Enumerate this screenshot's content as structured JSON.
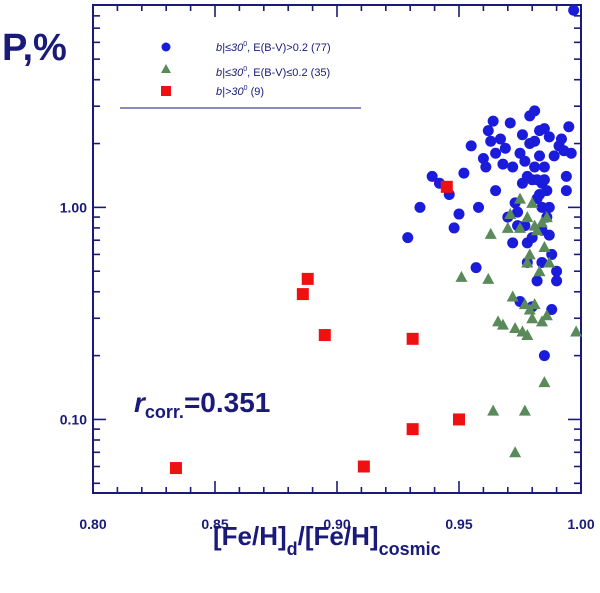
{
  "chart_data": {
    "type": "scatter",
    "title": "",
    "ylabel": "P,%",
    "xlabel_parts": {
      "a": "[Fe/H]",
      "a_sub": "d",
      "b": "/[Fe/H]",
      "b_sub": "cosmic"
    },
    "xlim": [
      0.8,
      1.0
    ],
    "ylim": [
      0.045,
      9.0
    ],
    "yscale": "log",
    "x_ticks": [
      "0.80",
      "0.85",
      "0.90",
      "0.95",
      "1.00"
    ],
    "y_ticks": [
      {
        "value": 0.1,
        "label": "0.10"
      },
      {
        "value": 1.0,
        "label": "1.00"
      }
    ],
    "annotation": {
      "r": "r",
      "sub": "corr.",
      "value": "=0.351"
    },
    "legend": [
      {
        "series": 0,
        "pre": "b|≤30",
        "sup": "0",
        "post": ", E(B-V)>0.2 (77)"
      },
      {
        "series": 1,
        "pre": "b|≤30",
        "sup": "0",
        "post": ", E(B-V)≤0.2 (35)"
      },
      {
        "series": 2,
        "pre": "b|>30",
        "sup": "0",
        "post": " (9)"
      }
    ],
    "series": [
      {
        "name": "|b|≤30°, E(B-V)>0.2 (77)",
        "marker": "circle",
        "color": "#1b1bdb",
        "points": [
          [
            0.997,
            8.5
          ],
          [
            0.929,
            0.72
          ],
          [
            0.934,
            1.0
          ],
          [
            0.939,
            1.4
          ],
          [
            0.942,
            1.3
          ],
          [
            0.946,
            1.15
          ],
          [
            0.948,
            0.8
          ],
          [
            0.95,
            0.93
          ],
          [
            0.952,
            1.45
          ],
          [
            0.955,
            1.95
          ],
          [
            0.957,
            0.52
          ],
          [
            0.958,
            1.0
          ],
          [
            0.96,
            1.7
          ],
          [
            0.961,
            1.55
          ],
          [
            0.962,
            2.3
          ],
          [
            0.963,
            2.05
          ],
          [
            0.964,
            2.55
          ],
          [
            0.965,
            1.8
          ],
          [
            0.965,
            1.2
          ],
          [
            0.967,
            2.1
          ],
          [
            0.968,
            1.6
          ],
          [
            0.969,
            1.9
          ],
          [
            0.97,
            0.9
          ],
          [
            0.971,
            2.5
          ],
          [
            0.972,
            0.68
          ],
          [
            0.972,
            1.55
          ],
          [
            0.973,
            1.05
          ],
          [
            0.974,
            0.95
          ],
          [
            0.974,
            0.82
          ],
          [
            0.975,
            1.8
          ],
          [
            0.975,
            0.36
          ],
          [
            0.976,
            2.2
          ],
          [
            0.976,
            1.3
          ],
          [
            0.977,
            1.65
          ],
          [
            0.977,
            0.82
          ],
          [
            0.978,
            1.4
          ],
          [
            0.978,
            0.68
          ],
          [
            0.978,
            0.55
          ],
          [
            0.979,
            2.7
          ],
          [
            0.979,
            2.0
          ],
          [
            0.98,
            1.35
          ],
          [
            0.98,
            0.72
          ],
          [
            0.98,
            0.34
          ],
          [
            0.981,
            2.85
          ],
          [
            0.981,
            2.05
          ],
          [
            0.981,
            1.55
          ],
          [
            0.982,
            1.35
          ],
          [
            0.982,
            1.1
          ],
          [
            0.982,
            0.45
          ],
          [
            0.983,
            2.3
          ],
          [
            0.983,
            1.75
          ],
          [
            0.983,
            1.15
          ],
          [
            0.984,
            1.3
          ],
          [
            0.984,
            1.0
          ],
          [
            0.984,
            0.78
          ],
          [
            0.984,
            0.55
          ],
          [
            0.985,
            2.35
          ],
          [
            0.985,
            1.55
          ],
          [
            0.985,
            1.35
          ],
          [
            0.985,
            0.2
          ],
          [
            0.986,
            1.2
          ],
          [
            0.986,
            0.9
          ],
          [
            0.987,
            2.15
          ],
          [
            0.987,
            1.0
          ],
          [
            0.987,
            0.74
          ],
          [
            0.988,
            0.6
          ],
          [
            0.988,
            0.33
          ],
          [
            0.989,
            1.75
          ],
          [
            0.99,
            0.5
          ],
          [
            0.99,
            0.45
          ],
          [
            0.991,
            1.95
          ],
          [
            0.992,
            2.1
          ],
          [
            0.993,
            1.85
          ],
          [
            0.994,
            1.4
          ],
          [
            0.994,
            1.2
          ],
          [
            0.995,
            2.4
          ],
          [
            0.996,
            1.8
          ]
        ]
      },
      {
        "name": "|b|≤30°, E(B-V)≤0.2 (35)",
        "marker": "triangle",
        "color": "#5a8a5a",
        "points": [
          [
            0.951,
            0.47
          ],
          [
            0.962,
            0.46
          ],
          [
            0.963,
            0.75
          ],
          [
            0.964,
            0.11
          ],
          [
            0.966,
            0.29
          ],
          [
            0.968,
            0.28
          ],
          [
            0.97,
            0.8
          ],
          [
            0.971,
            0.93
          ],
          [
            0.972,
            0.38
          ],
          [
            0.973,
            0.27
          ],
          [
            0.973,
            0.07
          ],
          [
            0.975,
            1.1
          ],
          [
            0.975,
            0.8
          ],
          [
            0.976,
            0.26
          ],
          [
            0.977,
            0.35
          ],
          [
            0.977,
            0.11
          ],
          [
            0.978,
            0.9
          ],
          [
            0.978,
            0.55
          ],
          [
            0.978,
            0.25
          ],
          [
            0.979,
            0.6
          ],
          [
            0.979,
            0.33
          ],
          [
            0.98,
            1.05
          ],
          [
            0.98,
            0.3
          ],
          [
            0.981,
            0.82
          ],
          [
            0.981,
            0.35
          ],
          [
            0.982,
            0.78
          ],
          [
            0.983,
            0.5
          ],
          [
            0.984,
            0.85
          ],
          [
            0.984,
            0.29
          ],
          [
            0.985,
            0.65
          ],
          [
            0.985,
            0.15
          ],
          [
            0.986,
            0.9
          ],
          [
            0.986,
            0.31
          ],
          [
            0.987,
            0.55
          ],
          [
            0.998,
            0.26
          ]
        ]
      },
      {
        "name": "|b|>30° (9)",
        "marker": "square",
        "color": "#ee1111",
        "points": [
          [
            0.834,
            0.059
          ],
          [
            0.886,
            0.39
          ],
          [
            0.888,
            0.46
          ],
          [
            0.895,
            0.25
          ],
          [
            0.911,
            0.06
          ],
          [
            0.931,
            0.24
          ],
          [
            0.931,
            0.09
          ],
          [
            0.945,
            1.25
          ],
          [
            0.95,
            0.1
          ]
        ]
      }
    ]
  }
}
